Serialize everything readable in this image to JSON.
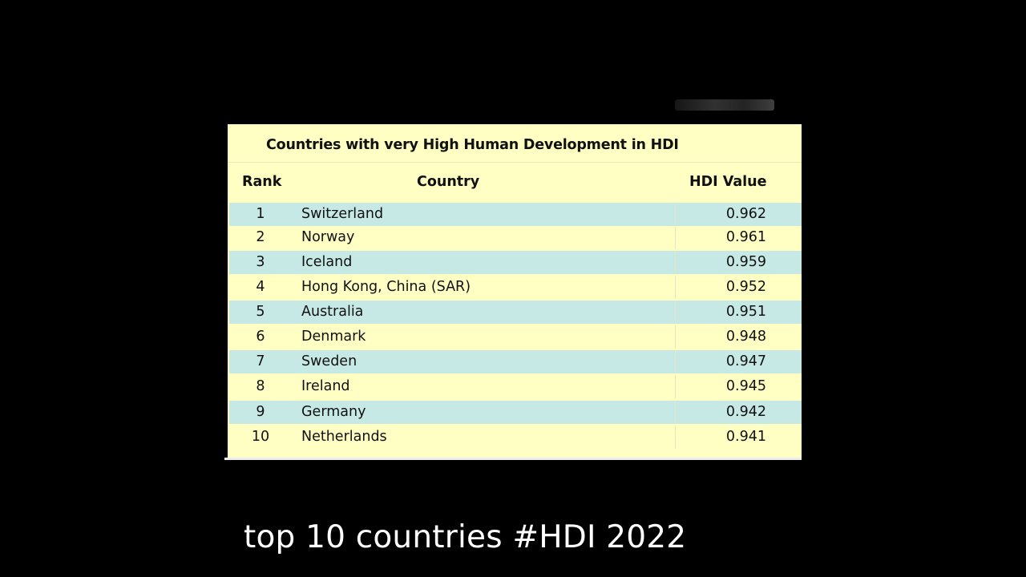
{
  "table": {
    "title": "Countries with very High Human Development in HDI",
    "headers": {
      "rank": "Rank",
      "country": "Country",
      "hdi": "HDI Value"
    },
    "rows": [
      {
        "rank": "1",
        "country": "Switzerland",
        "hdi": "0.962"
      },
      {
        "rank": "2",
        "country": "Norway",
        "hdi": "0.961"
      },
      {
        "rank": "3",
        "country": "Iceland",
        "hdi": "0.959"
      },
      {
        "rank": "4",
        "country": "Hong Kong, China (SAR)",
        "hdi": "0.952"
      },
      {
        "rank": "5",
        "country": "Australia",
        "hdi": "0.951"
      },
      {
        "rank": "6",
        "country": "Denmark",
        "hdi": "0.948"
      },
      {
        "rank": "7",
        "country": "Sweden",
        "hdi": "0.947"
      },
      {
        "rank": "8",
        "country": "Ireland",
        "hdi": "0.945"
      },
      {
        "rank": "9",
        "country": "Germany",
        "hdi": "0.942"
      },
      {
        "rank": "10",
        "country": "Netherlands",
        "hdi": "0.941"
      }
    ]
  },
  "caption": "top 10 countries #HDI 2022",
  "colors": {
    "background": "#000000",
    "table_yellow": "#ffffc4",
    "row_blue": "#c6e9e6",
    "caption_text": "#ffffff"
  }
}
